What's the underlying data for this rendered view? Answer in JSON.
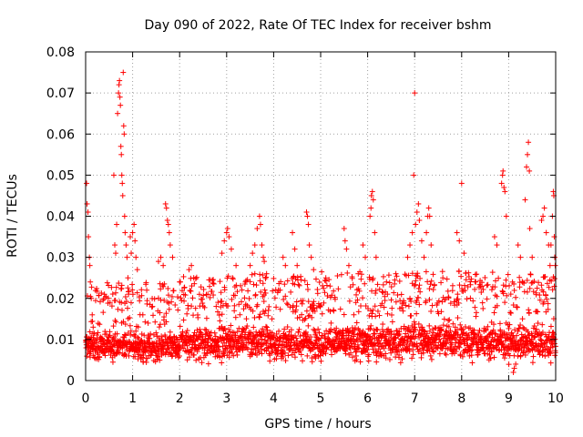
{
  "chart_data": {
    "type": "scatter",
    "title": "Day 090 of 2022, Rate Of TEC Index for receiver bshm",
    "xlabel": "GPS time / hours",
    "ylabel": "ROTI / TECUs",
    "xlim": [
      0,
      10
    ],
    "ylim": [
      0,
      0.08
    ],
    "x_ticks": [
      "0",
      "1",
      "2",
      "3",
      "4",
      "5",
      "6",
      "7",
      "8",
      "9",
      "10"
    ],
    "y_ticks": [
      "0",
      "0.01",
      "0.02",
      "0.03",
      "0.04",
      "0.05",
      "0.06",
      "0.07",
      "0.08"
    ],
    "grid": true,
    "marker": "plus",
    "color": "#ff0000",
    "series": [
      {
        "points": [
          [
            0.02,
            0.048
          ],
          [
            0.03,
            0.043
          ],
          [
            0.05,
            0.041
          ],
          [
            0.06,
            0.035
          ],
          [
            0.08,
            0.03
          ],
          [
            0.09,
            0.028
          ],
          [
            0.1,
            0.024
          ],
          [
            0.12,
            0.02
          ],
          [
            0.14,
            0.016
          ],
          [
            0.16,
            0.013
          ],
          [
            0.6,
            0.05
          ],
          [
            0.62,
            0.033
          ],
          [
            0.64,
            0.031
          ],
          [
            0.66,
            0.038
          ],
          [
            0.68,
            0.065
          ],
          [
            0.7,
            0.07
          ],
          [
            0.71,
            0.072
          ],
          [
            0.72,
            0.073
          ],
          [
            0.73,
            0.069
          ],
          [
            0.74,
            0.067
          ],
          [
            0.75,
            0.057
          ],
          [
            0.76,
            0.055
          ],
          [
            0.77,
            0.05
          ],
          [
            0.78,
            0.048
          ],
          [
            0.79,
            0.045
          ],
          [
            0.8,
            0.075
          ],
          [
            0.81,
            0.062
          ],
          [
            0.82,
            0.06
          ],
          [
            0.83,
            0.04
          ],
          [
            0.84,
            0.036
          ],
          [
            0.86,
            0.033
          ],
          [
            0.88,
            0.03
          ],
          [
            0.9,
            0.025
          ],
          [
            0.95,
            0.035
          ],
          [
            0.97,
            0.031
          ],
          [
            1.0,
            0.036
          ],
          [
            1.03,
            0.038
          ],
          [
            1.05,
            0.034
          ],
          [
            1.07,
            0.03
          ],
          [
            1.1,
            0.027
          ],
          [
            1.55,
            0.029
          ],
          [
            1.6,
            0.03
          ],
          [
            1.65,
            0.028
          ],
          [
            1.7,
            0.043
          ],
          [
            1.72,
            0.042
          ],
          [
            1.74,
            0.039
          ],
          [
            1.76,
            0.038
          ],
          [
            1.78,
            0.036
          ],
          [
            1.8,
            0.033
          ],
          [
            1.85,
            0.03
          ],
          [
            2.2,
            0.027
          ],
          [
            2.25,
            0.028
          ],
          [
            2.3,
            0.025
          ],
          [
            2.9,
            0.031
          ],
          [
            2.95,
            0.034
          ],
          [
            3.0,
            0.036
          ],
          [
            3.02,
            0.037
          ],
          [
            3.05,
            0.035
          ],
          [
            3.1,
            0.032
          ],
          [
            3.2,
            0.028
          ],
          [
            3.5,
            0.028
          ],
          [
            3.55,
            0.031
          ],
          [
            3.6,
            0.033
          ],
          [
            3.65,
            0.037
          ],
          [
            3.7,
            0.04
          ],
          [
            3.72,
            0.038
          ],
          [
            3.75,
            0.033
          ],
          [
            3.78,
            0.03
          ],
          [
            3.8,
            0.029
          ],
          [
            3.85,
            0.026
          ],
          [
            4.2,
            0.03
          ],
          [
            4.25,
            0.028
          ],
          [
            4.4,
            0.036
          ],
          [
            4.45,
            0.032
          ],
          [
            4.5,
            0.028
          ],
          [
            4.7,
            0.041
          ],
          [
            4.72,
            0.04
          ],
          [
            4.74,
            0.038
          ],
          [
            4.76,
            0.033
          ],
          [
            4.8,
            0.03
          ],
          [
            4.85,
            0.027
          ],
          [
            5.5,
            0.037
          ],
          [
            5.52,
            0.034
          ],
          [
            5.55,
            0.032
          ],
          [
            5.6,
            0.028
          ],
          [
            5.9,
            0.033
          ],
          [
            5.95,
            0.03
          ],
          [
            6.05,
            0.04
          ],
          [
            6.07,
            0.042
          ],
          [
            6.08,
            0.045
          ],
          [
            6.1,
            0.046
          ],
          [
            6.12,
            0.044
          ],
          [
            6.15,
            0.036
          ],
          [
            6.18,
            0.03
          ],
          [
            6.85,
            0.03
          ],
          [
            6.9,
            0.033
          ],
          [
            6.95,
            0.036
          ],
          [
            6.98,
            0.05
          ],
          [
            7.0,
            0.07
          ],
          [
            7.02,
            0.038
          ],
          [
            7.05,
            0.041
          ],
          [
            7.08,
            0.043
          ],
          [
            7.1,
            0.039
          ],
          [
            7.15,
            0.034
          ],
          [
            7.2,
            0.03
          ],
          [
            7.25,
            0.036
          ],
          [
            7.28,
            0.04
          ],
          [
            7.3,
            0.042
          ],
          [
            7.32,
            0.04
          ],
          [
            7.35,
            0.033
          ],
          [
            7.9,
            0.036
          ],
          [
            7.95,
            0.034
          ],
          [
            8.0,
            0.048
          ],
          [
            8.05,
            0.031
          ],
          [
            8.7,
            0.035
          ],
          [
            8.75,
            0.033
          ],
          [
            8.85,
            0.048
          ],
          [
            8.87,
            0.05
          ],
          [
            8.88,
            0.051
          ],
          [
            8.9,
            0.047
          ],
          [
            8.92,
            0.046
          ],
          [
            8.95,
            0.04
          ],
          [
            9.2,
            0.033
          ],
          [
            9.25,
            0.03
          ],
          [
            9.35,
            0.044
          ],
          [
            9.38,
            0.052
          ],
          [
            9.4,
            0.055
          ],
          [
            9.42,
            0.058
          ],
          [
            9.44,
            0.051
          ],
          [
            9.45,
            0.037
          ],
          [
            9.5,
            0.03
          ],
          [
            9.7,
            0.039
          ],
          [
            9.73,
            0.04
          ],
          [
            9.76,
            0.042
          ],
          [
            9.8,
            0.036
          ],
          [
            9.85,
            0.033
          ],
          [
            9.88,
            0.028
          ],
          [
            9.9,
            0.033
          ],
          [
            9.93,
            0.04
          ],
          [
            9.95,
            0.046
          ],
          [
            9.96,
            0.045
          ],
          [
            9.97,
            0.035
          ],
          [
            9.98,
            0.03
          ],
          [
            9.99,
            0.028
          ],
          [
            9.1,
            0.002
          ],
          [
            9.12,
            0.003
          ],
          [
            9.15,
            0.004
          ],
          [
            1.3,
            0.022
          ],
          [
            2.6,
            0.021
          ],
          [
            5.2,
            0.023
          ],
          [
            6.4,
            0.024
          ],
          [
            8.4,
            0.023
          ],
          [
            3.4,
            0.024
          ],
          [
            4.1,
            0.022
          ],
          [
            0.4,
            0.021
          ],
          [
            2.0,
            0.024
          ],
          [
            6.6,
            0.026
          ],
          [
            7.6,
            0.025
          ],
          [
            8.3,
            0.024
          ],
          [
            5.8,
            0.026
          ]
        ],
        "background_band": {
          "segments": [
            {
              "x0": 0.0,
              "x1": 1.0,
              "median": 0.0085,
              "spread": 0.0045
            },
            {
              "x0": 1.0,
              "x1": 2.0,
              "median": 0.008,
              "spread": 0.005
            },
            {
              "x0": 2.0,
              "x1": 3.0,
              "median": 0.009,
              "spread": 0.0055
            },
            {
              "x0": 3.0,
              "x1": 4.0,
              "median": 0.0095,
              "spread": 0.0055
            },
            {
              "x0": 4.0,
              "x1": 5.0,
              "median": 0.009,
              "spread": 0.0055
            },
            {
              "x0": 5.0,
              "x1": 6.0,
              "median": 0.0095,
              "spread": 0.006
            },
            {
              "x0": 6.0,
              "x1": 7.0,
              "median": 0.0095,
              "spread": 0.006
            },
            {
              "x0": 7.0,
              "x1": 8.0,
              "median": 0.01,
              "spread": 0.006
            },
            {
              "x0": 8.0,
              "x1": 9.0,
              "median": 0.0095,
              "spread": 0.006
            },
            {
              "x0": 9.0,
              "x1": 10.0,
              "median": 0.009,
              "spread": 0.006
            }
          ],
          "count_per_hour": 260
        }
      }
    ]
  }
}
